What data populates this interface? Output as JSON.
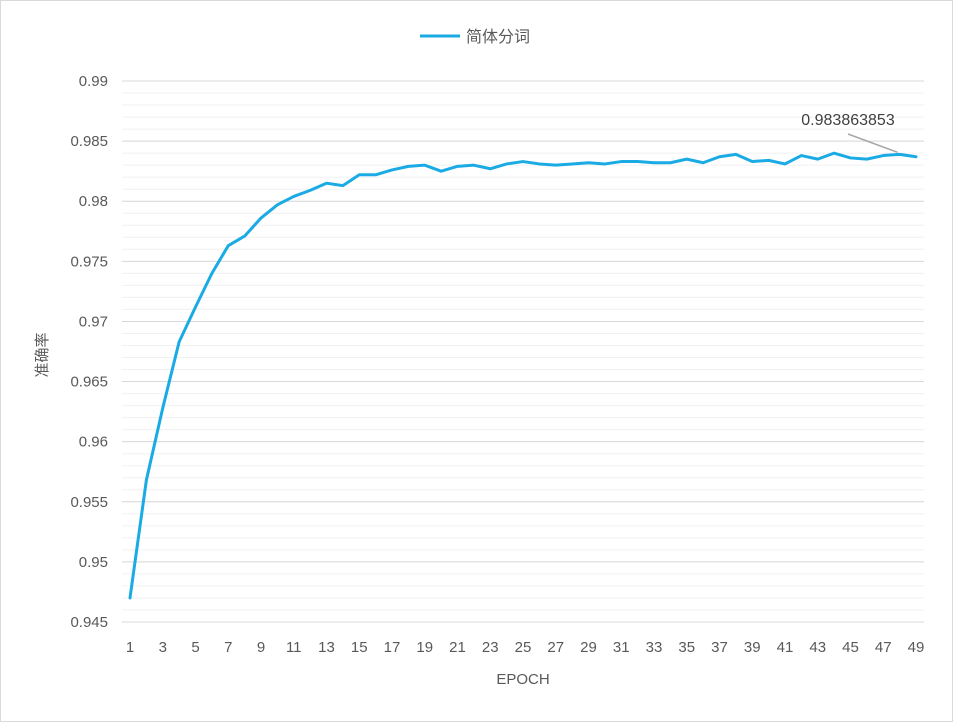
{
  "chart_data": {
    "type": "line",
    "title": "",
    "xlabel": "EPOCH",
    "ylabel": "准确率",
    "ylim": [
      0.945,
      0.99
    ],
    "y_major_step": 0.005,
    "y_minor_step": 0.001,
    "y_tick_labels": [
      "0.945",
      "0.95",
      "0.955",
      "0.96",
      "0.965",
      "0.97",
      "0.975",
      "0.98",
      "0.985",
      "0.99"
    ],
    "x": [
      1,
      2,
      3,
      4,
      5,
      6,
      7,
      8,
      9,
      10,
      11,
      12,
      13,
      14,
      15,
      16,
      17,
      18,
      19,
      20,
      21,
      22,
      23,
      24,
      25,
      26,
      27,
      28,
      29,
      30,
      31,
      32,
      33,
      34,
      35,
      36,
      37,
      38,
      39,
      40,
      41,
      42,
      43,
      44,
      45,
      46,
      47,
      48,
      49
    ],
    "x_tick_labels": [
      "1",
      "3",
      "5",
      "7",
      "9",
      "11",
      "13",
      "15",
      "17",
      "19",
      "21",
      "23",
      "25",
      "27",
      "29",
      "31",
      "33",
      "35",
      "37",
      "39",
      "41",
      "43",
      "45",
      "47",
      "49"
    ],
    "grid": true,
    "legend": "top-center",
    "series": [
      {
        "name": "简体分词",
        "color": "#1aabe5",
        "values": [
          0.947,
          0.9568,
          0.9628,
          0.9683,
          0.9712,
          0.974,
          0.9763,
          0.9771,
          0.9786,
          0.9797,
          0.9804,
          0.9809,
          0.9815,
          0.9813,
          0.9822,
          0.9822,
          0.9826,
          0.9829,
          0.983,
          0.9825,
          0.9829,
          0.983,
          0.9827,
          0.9831,
          0.9833,
          0.9831,
          0.983,
          0.9831,
          0.9832,
          0.9831,
          0.9833,
          0.9833,
          0.9832,
          0.9832,
          0.9835,
          0.9832,
          0.9837,
          0.9839,
          0.9833,
          0.9834,
          0.9831,
          0.9838,
          0.9835,
          0.984,
          0.9836,
          0.9835,
          0.9838,
          0.9839,
          0.9837
        ]
      }
    ],
    "annotations": [
      {
        "text": "0.983863853",
        "x": 48
      }
    ]
  }
}
